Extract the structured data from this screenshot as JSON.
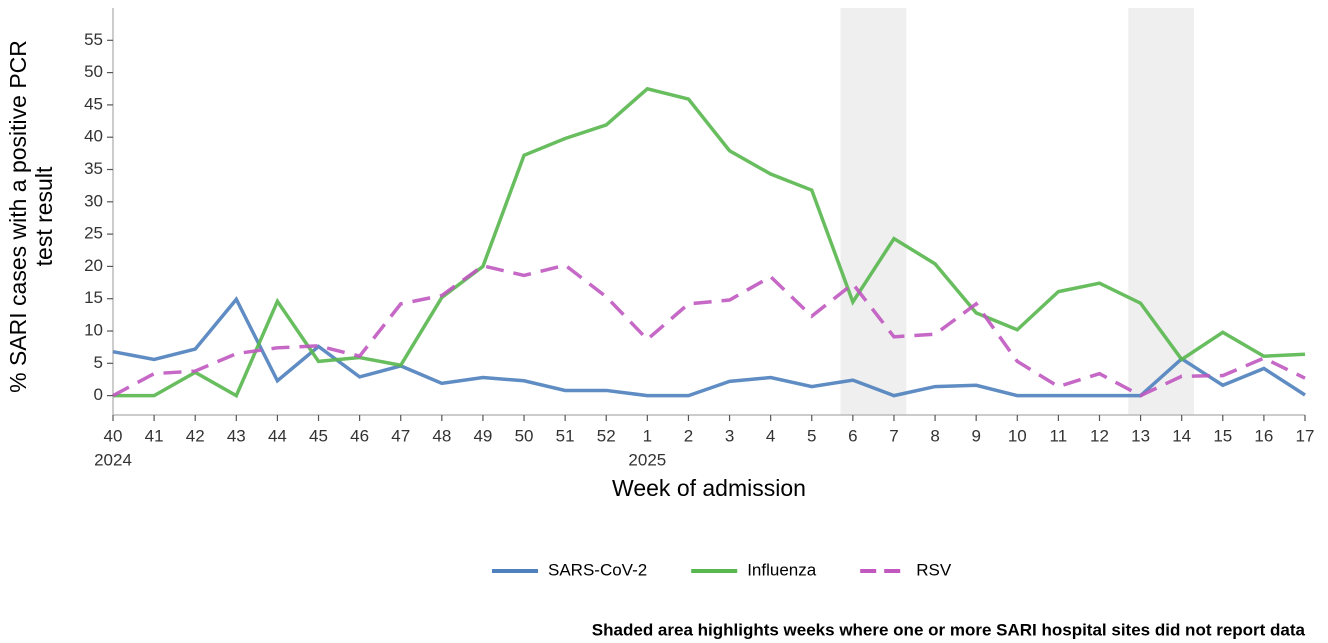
{
  "chart_data": {
    "type": "line",
    "xlabel": "Week of admission",
    "ylabel_lines": [
      "% SARI cases with a positive PCR",
      "test result"
    ],
    "categories": [
      "40",
      "41",
      "42",
      "43",
      "44",
      "45",
      "46",
      "47",
      "48",
      "49",
      "50",
      "51",
      "52",
      "1",
      "2",
      "3",
      "4",
      "5",
      "6",
      "7",
      "8",
      "9",
      "10",
      "11",
      "12",
      "13",
      "14",
      "15",
      "16",
      "17"
    ],
    "category_sublabels": [
      "2024",
      null,
      null,
      null,
      null,
      null,
      null,
      null,
      null,
      null,
      null,
      null,
      null,
      "2025",
      null,
      null,
      null,
      null,
      null,
      null,
      null,
      null,
      null,
      null,
      null,
      null,
      null,
      null,
      null,
      null
    ],
    "shaded_weeks": [
      [
        "6",
        "7"
      ],
      [
        "13",
        "14"
      ]
    ],
    "note": "Shaded area highlights weeks where one or more SARI hospital sites did not report data",
    "ylim": [
      -3,
      60
    ],
    "yticks": [
      0,
      5,
      10,
      15,
      20,
      25,
      30,
      35,
      40,
      45,
      50,
      55
    ],
    "legend": "bottom",
    "series": [
      {
        "name": "SARS-CoV-2",
        "color": "#4e81bd",
        "dash": false,
        "values": [
          6.8,
          5.6,
          7.2,
          14.9,
          2.3,
          7.6,
          2.9,
          4.6,
          1.9,
          2.8,
          2.3,
          0.8,
          0.8,
          0,
          0,
          2.2,
          2.8,
          1.4,
          2.4,
          0,
          1.4,
          1.6,
          0,
          0,
          0,
          0,
          5.7,
          1.6,
          4.2,
          0.1
        ]
      },
      {
        "name": "Influenza",
        "color": "#58b74e",
        "dash": false,
        "values": [
          0,
          0,
          3.6,
          0,
          14.6,
          5.3,
          5.9,
          4.7,
          15.2,
          20,
          37.2,
          39.8,
          41.9,
          47.5,
          45.9,
          37.9,
          34.3,
          31.8,
          14.5,
          24.3,
          20.4,
          12.8,
          10.2,
          16.1,
          17.4,
          14.3,
          5.6,
          9.8,
          6.1,
          6.4
        ]
      },
      {
        "name": "RSV",
        "color": "#c058c0",
        "dash": true,
        "values": [
          0,
          3.4,
          3.8,
          6.5,
          7.4,
          7.7,
          6.1,
          14.2,
          15.5,
          20.1,
          18.6,
          20.2,
          15.3,
          8.7,
          14.2,
          14.8,
          18.4,
          12.3,
          17.3,
          9.1,
          9.5,
          14.2,
          5.3,
          1.4,
          3.4,
          0,
          3,
          3.1,
          5.8,
          2.7
        ]
      }
    ]
  }
}
